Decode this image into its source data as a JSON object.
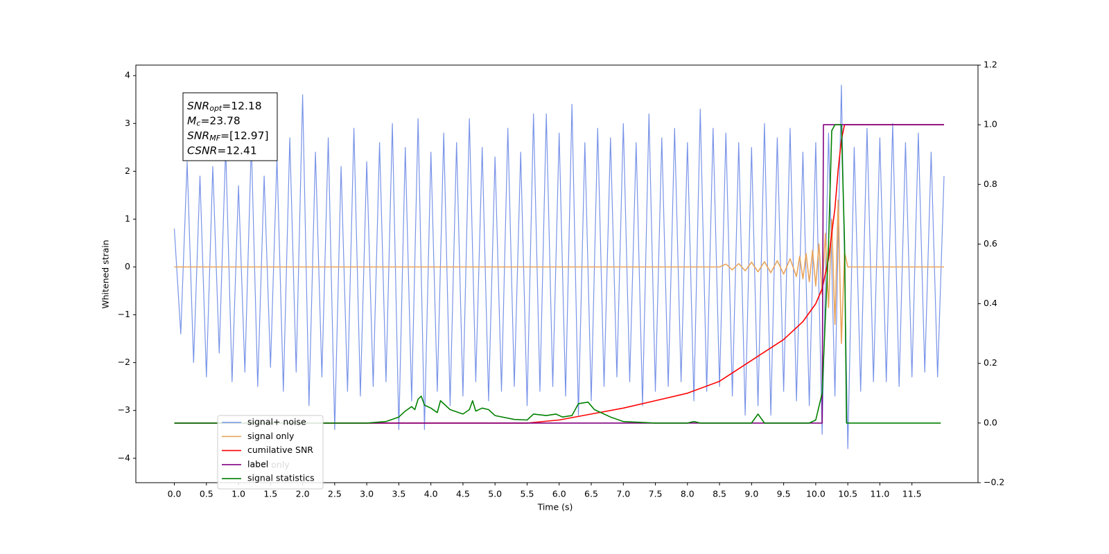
{
  "chart_data": {
    "type": "line",
    "xlabel": "Time (s)",
    "ylabel": "Whitened strain",
    "xlim": [
      -0.6,
      12.53
    ],
    "ylim": [
      -4.51,
      4.22
    ],
    "y2lim": [
      -0.2,
      1.2
    ],
    "xticks": [
      {
        "value": 0,
        "label": "0.0"
      },
      {
        "value": 0.5,
        "label": "0.5"
      },
      {
        "value": 1,
        "label": "1.0"
      },
      {
        "value": 1.5,
        "label": "1.5"
      },
      {
        "value": 2,
        "label": "2.0"
      },
      {
        "value": 2.5,
        "label": "2.5"
      },
      {
        "value": 3,
        "label": "3.0"
      },
      {
        "value": 3.5,
        "label": "3.5"
      },
      {
        "value": 4,
        "label": "4.0"
      },
      {
        "value": 4.5,
        "label": "4.5"
      },
      {
        "value": 5,
        "label": "5.0"
      },
      {
        "value": 5.5,
        "label": "5.5"
      },
      {
        "value": 6,
        "label": "6.0"
      },
      {
        "value": 6.5,
        "label": "6.5"
      },
      {
        "value": 7,
        "label": "7.0"
      },
      {
        "value": 7.5,
        "label": "7.5"
      },
      {
        "value": 8,
        "label": "8.0"
      },
      {
        "value": 8.5,
        "label": "8.5"
      },
      {
        "value": 9,
        "label": "9.0"
      },
      {
        "value": 9.5,
        "label": "9.5"
      },
      {
        "value": 10,
        "label": "10.0"
      },
      {
        "value": 10.5,
        "label": "10.5"
      },
      {
        "value": 11,
        "label": "11.0"
      },
      {
        "value": 11.5,
        "label": "11.5"
      }
    ],
    "yticks": [
      {
        "value": -4,
        "label": "−4"
      },
      {
        "value": -3,
        "label": "−3"
      },
      {
        "value": -2,
        "label": "−2"
      },
      {
        "value": -1,
        "label": "−1"
      },
      0,
      1,
      2,
      3,
      4
    ],
    "y2ticks": [
      {
        "value": -0.2,
        "label": "−0.2"
      },
      {
        "value": 0,
        "label": "0.0"
      },
      {
        "value": 0.2,
        "label": "0.2"
      },
      {
        "value": 0.4,
        "label": "0.4"
      },
      {
        "value": 0.6,
        "label": "0.6"
      },
      {
        "value": 0.8,
        "label": "0.8"
      },
      {
        "value": 1,
        "label": "1.0"
      },
      {
        "value": 1.2,
        "label": "1.2"
      }
    ],
    "stats": [
      {
        "name": "SNR",
        "sub": "opt",
        "text": "=12.18"
      },
      {
        "name": "M",
        "sub": "c",
        "text": "=23.78"
      },
      {
        "name": "SNR",
        "sub": "MF",
        "text": "=[12.97]"
      },
      {
        "name": "CSNR",
        "text": "=12.41"
      }
    ],
    "hidden_legend_text": "label only",
    "series": [
      {
        "name": "signal+ noise",
        "color": "#7893e8",
        "x": [
          0,
          0.1,
          0.2,
          0.3,
          0.4,
          0.5,
          0.6,
          0.7,
          0.8,
          0.9,
          1,
          1.1,
          1.2,
          1.3,
          1.4,
          1.5,
          1.6,
          1.7,
          1.8,
          1.9,
          2,
          2.1,
          2.2,
          2.3,
          2.4,
          2.5,
          2.6,
          2.7,
          2.8,
          2.9,
          3,
          3.1,
          3.2,
          3.3,
          3.4,
          3.5,
          3.6,
          3.7,
          3.8,
          3.9,
          4,
          4.1,
          4.2,
          4.3,
          4.4,
          4.5,
          4.6,
          4.7,
          4.8,
          4.9,
          5,
          5.1,
          5.2,
          5.3,
          5.4,
          5.5,
          5.6,
          5.7,
          5.8,
          5.9,
          6,
          6.1,
          6.2,
          6.3,
          6.4,
          6.5,
          6.6,
          6.7,
          6.8,
          6.9,
          7,
          7.1,
          7.2,
          7.3,
          7.4,
          7.5,
          7.6,
          7.7,
          7.8,
          7.9,
          8,
          8.1,
          8.2,
          8.3,
          8.4,
          8.5,
          8.6,
          8.7,
          8.8,
          8.9,
          9,
          9.1,
          9.2,
          9.3,
          9.4,
          9.5,
          9.6,
          9.7,
          9.8,
          9.9,
          10,
          10.1,
          10.2,
          10.3,
          10.4,
          10.5,
          10.6,
          10.7,
          10.8,
          10.9,
          11,
          11.1,
          11.2,
          11.3,
          11.4,
          11.5,
          11.6,
          11.7,
          11.8,
          11.9,
          12
        ],
        "values": [
          0.8,
          -1.4,
          2.2,
          -2.0,
          1.9,
          -2.3,
          2.1,
          -1.8,
          2.5,
          -2.4,
          1.7,
          -2.2,
          2.6,
          -2.5,
          1.9,
          -2.1,
          2.3,
          -2.6,
          2.7,
          -2.2,
          3.6,
          -2.9,
          2.4,
          -2.3,
          2.7,
          -3.4,
          2.1,
          -2.6,
          2.9,
          -2.7,
          2.2,
          -2.5,
          2.6,
          -2.4,
          3.0,
          -3.4,
          2.5,
          -2.8,
          3.1,
          -3.4,
          2.4,
          -2.6,
          2.8,
          -2.9,
          2.6,
          -2.7,
          3.1,
          -2.4,
          2.5,
          -2.8,
          2.3,
          -2.6,
          2.9,
          -2.5,
          2.4,
          -2.9,
          3.2,
          -2.6,
          3.2,
          -2.5,
          2.8,
          -2.7,
          3.4,
          -3.1,
          2.6,
          -2.8,
          2.9,
          -2.5,
          2.7,
          -2.3,
          3.0,
          -2.4,
          2.6,
          -2.9,
          3.2,
          -2.6,
          2.7,
          -2.5,
          2.9,
          -2.4,
          2.6,
          -2.8,
          3.3,
          -2.6,
          2.9,
          -2.5,
          2.8,
          -2.7,
          2.6,
          -3.1,
          2.5,
          -2.9,
          3.0,
          -3.1,
          2.7,
          -2.6,
          2.9,
          -2.8,
          2.4,
          -2.9,
          2.6,
          -3.5,
          2.8,
          -2.7,
          3.8,
          -3.8,
          2.5,
          -2.6,
          2.9,
          -2.4,
          2.7,
          -2.4,
          3.0,
          -2.5,
          2.6,
          -2.3,
          2.8,
          -2.2,
          2.4,
          -2.3,
          1.9
        ]
      },
      {
        "name": "signal only",
        "color": "#e8a45a",
        "x": [
          0,
          8.5,
          8.6,
          8.7,
          8.8,
          8.9,
          9,
          9.1,
          9.2,
          9.3,
          9.4,
          9.5,
          9.6,
          9.7,
          9.75,
          9.8,
          9.85,
          9.9,
          9.95,
          10,
          10.05,
          10.1,
          10.15,
          10.2,
          10.25,
          10.3,
          10.35,
          10.4,
          10.45,
          10.5,
          12
        ],
        "values": [
          0,
          0,
          0.06,
          -0.06,
          0.07,
          -0.08,
          0.1,
          -0.1,
          0.11,
          -0.12,
          0.13,
          -0.15,
          0.17,
          -0.2,
          0.22,
          -0.25,
          0.28,
          -0.31,
          0.35,
          -0.4,
          0.48,
          -0.58,
          0.7,
          -0.85,
          1.0,
          -1.2,
          1.4,
          -1.6,
          0.3,
          0,
          0
        ]
      },
      {
        "name": "cumilative SNR",
        "color": "#ff0000",
        "axis": "y2",
        "x": [
          0,
          5.5,
          6,
          6.5,
          7,
          7.5,
          8,
          8.5,
          9,
          9.5,
          9.8,
          10,
          10.1,
          10.2,
          10.3,
          10.35,
          10.4,
          10.45,
          12
        ],
        "values": [
          0,
          0,
          0.01,
          0.03,
          0.05,
          0.075,
          0.1,
          0.14,
          0.21,
          0.28,
          0.34,
          0.4,
          0.45,
          0.55,
          0.72,
          0.85,
          0.95,
          1,
          1
        ]
      },
      {
        "name": "label",
        "color": "#800080",
        "axis": "y2",
        "x": [
          0,
          10.1,
          10.12,
          12
        ],
        "values": [
          0,
          0,
          1,
          1
        ]
      },
      {
        "name": "signal statistics",
        "color": "#008000",
        "axis": "y2",
        "x": [
          0,
          2.5,
          3,
          3.3,
          3.5,
          3.6,
          3.7,
          3.75,
          3.8,
          3.85,
          3.9,
          4,
          4.1,
          4.15,
          4.3,
          4.5,
          4.6,
          4.65,
          4.7,
          4.8,
          4.9,
          5,
          5.3,
          5.5,
          5.6,
          5.8,
          5.95,
          6.05,
          6.2,
          6.3,
          6.45,
          6.55,
          6.8,
          7,
          7.5,
          8,
          8.1,
          8.2,
          9,
          9.1,
          9.2,
          9.9,
          10,
          10.1,
          10.2,
          10.25,
          10.3,
          10.4,
          10.45,
          10.48,
          11.95
        ],
        "values": [
          0,
          0,
          0,
          0.005,
          0.02,
          0.04,
          0.055,
          0.045,
          0.08,
          0.09,
          0.06,
          0.05,
          0.035,
          0.075,
          0.045,
          0.03,
          0.045,
          0.075,
          0.04,
          0.05,
          0.045,
          0.025,
          0.012,
          0.01,
          0.03,
          0.025,
          0.03,
          0.02,
          0.025,
          0.065,
          0.07,
          0.045,
          0.02,
          0.005,
          0,
          0,
          0.005,
          0,
          0,
          0.03,
          0,
          0,
          0.01,
          0.1,
          0.6,
          0.98,
          1,
          1,
          0.6,
          0,
          0
        ]
      }
    ]
  }
}
